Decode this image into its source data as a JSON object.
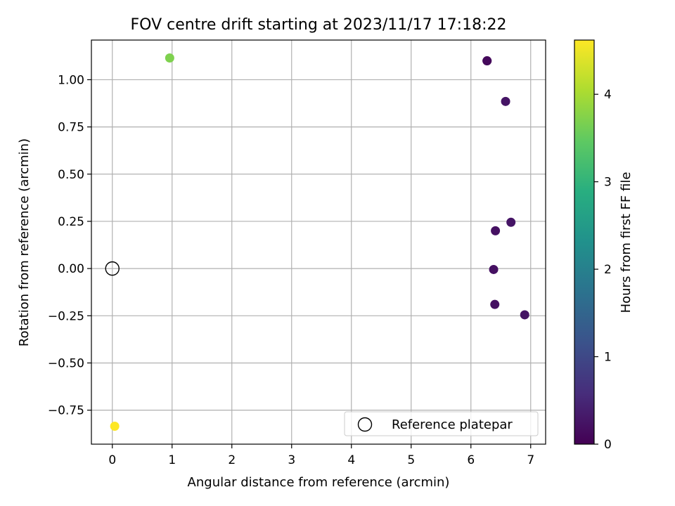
{
  "chart_data": {
    "type": "scatter",
    "title": "FOV centre drift starting at 2023/11/17 17:18:22",
    "xlabel": "Angular distance from reference (arcmin)",
    "ylabel": "Rotation from reference (arcmin)",
    "xlim": [
      -0.35,
      7.25
    ],
    "ylim": [
      -0.93,
      1.21
    ],
    "xticks": [
      0,
      1,
      2,
      3,
      4,
      5,
      6,
      7
    ],
    "xtick_labels": [
      "0",
      "1",
      "2",
      "3",
      "4",
      "5",
      "6",
      "7"
    ],
    "yticks": [
      -0.75,
      -0.5,
      -0.25,
      0.0,
      0.25,
      0.5,
      0.75,
      1.0
    ],
    "ytick_labels": [
      "−0.75",
      "−0.50",
      "−0.25",
      "0.00",
      "0.25",
      "0.50",
      "0.75",
      "1.00"
    ],
    "grid": true,
    "colorbar": {
      "label": "Hours from first FF file",
      "colormap": "viridis",
      "range": [
        0,
        4.62
      ],
      "ticks": [
        0,
        1,
        2,
        3,
        4
      ],
      "tick_labels": [
        "0",
        "1",
        "2",
        "3",
        "4"
      ]
    },
    "points": [
      {
        "x": 6.27,
        "y": 1.1,
        "hours": 0.05
      },
      {
        "x": 6.27,
        "y": 1.1,
        "hours": 0.1
      },
      {
        "x": 6.58,
        "y": 0.885,
        "hours": 0.25
      },
      {
        "x": 6.67,
        "y": 0.245,
        "hours": 0.25
      },
      {
        "x": 6.41,
        "y": 0.2,
        "hours": 0.2
      },
      {
        "x": 6.38,
        "y": -0.005,
        "hours": 0.2
      },
      {
        "x": 6.4,
        "y": -0.19,
        "hours": 0.2
      },
      {
        "x": 6.9,
        "y": -0.245,
        "hours": 0.25
      },
      {
        "x": 0.96,
        "y": 1.115,
        "hours": 3.7
      },
      {
        "x": 0.04,
        "y": -0.835,
        "hours": 4.62
      }
    ],
    "reference": {
      "x": 0,
      "y": 0,
      "label": "Reference platepar"
    },
    "legend": {
      "position": "lower right",
      "entries": [
        "Reference platepar"
      ]
    }
  }
}
